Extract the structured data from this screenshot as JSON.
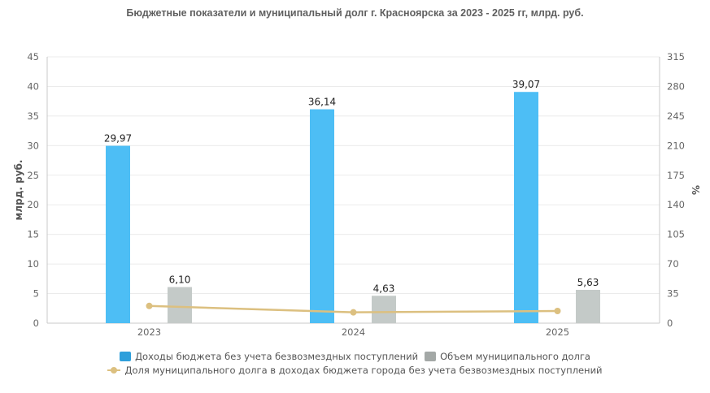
{
  "chart_data": {
    "type": "bar",
    "title": "Бюджетные показатели и муниципальный долг г. Красноярска за 2023 - 2025 гг, млрд. руб.",
    "categories": [
      "2023",
      "2024",
      "2025"
    ],
    "series": [
      {
        "name": "Доходы бюджета без учета безвозмездных поступлений",
        "type": "bar",
        "axis": "left",
        "values": [
          29.97,
          36.14,
          39.07
        ],
        "labels": [
          "29,97",
          "36,14",
          "39,07"
        ],
        "color": "#4dbef5",
        "legend_color": "#2e9fdb"
      },
      {
        "name": "Объем муниципального долга",
        "type": "bar",
        "axis": "left",
        "values": [
          6.1,
          4.63,
          5.63
        ],
        "labels": [
          "6,10",
          "4,63",
          "5,63"
        ],
        "color": "#c4cac8",
        "legend_color": "#a3a8a6"
      },
      {
        "name": "Доля муниципального долга в доходах бюджета города без учета безвозмездных поступлений",
        "type": "line",
        "axis": "right",
        "values": [
          20.35,
          12.81,
          14.41
        ],
        "color": "#dcc080"
      }
    ],
    "ylabel": "млрд. руб.",
    "y2label": "%",
    "ylim": [
      0,
      45
    ],
    "y2lim": [
      0,
      315
    ],
    "yticks": [
      "0",
      "5",
      "10",
      "15",
      "20",
      "25",
      "30",
      "35",
      "40",
      "45"
    ],
    "y2ticks": [
      "0",
      "35",
      "70",
      "105",
      "140",
      "175",
      "210",
      "245",
      "280",
      "315"
    ],
    "grid": true,
    "legend_position": "bottom"
  },
  "legend": {
    "items": [
      "Доходы бюджета без учета безвозмездных поступлений",
      "Объем муниципального долга",
      "Доля муниципального долга в доходах бюджета города без учета безвозмездных поступлений"
    ]
  }
}
